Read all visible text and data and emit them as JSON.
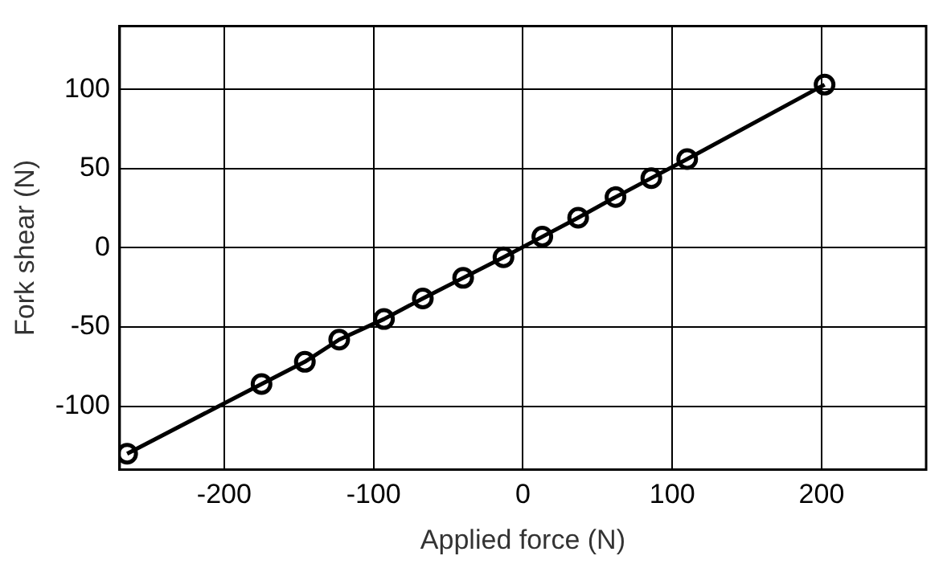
{
  "chart_data": {
    "type": "line",
    "xlabel": "Applied force (N)",
    "ylabel": "Fork shear (N)",
    "x": [
      -265,
      -175,
      -146,
      -123,
      -93,
      -67,
      -40,
      -13,
      13,
      37,
      62,
      86,
      110,
      202
    ],
    "series": [
      {
        "color": "#000000",
        "values": [
          -130,
          -86,
          -72,
          -58,
          -45,
          -32,
          -19,
          -6,
          7,
          19,
          32,
          44,
          56,
          103
        ]
      }
    ],
    "xlim": [
      -270,
      270
    ],
    "xticks": [
      -200,
      -100,
      0,
      100,
      200
    ],
    "ylim": [
      -140,
      140
    ],
    "yticks": [
      -100,
      -50,
      0,
      50,
      100
    ],
    "grid": true,
    "legend": false,
    "marker": "circle",
    "line_style": "solid"
  }
}
